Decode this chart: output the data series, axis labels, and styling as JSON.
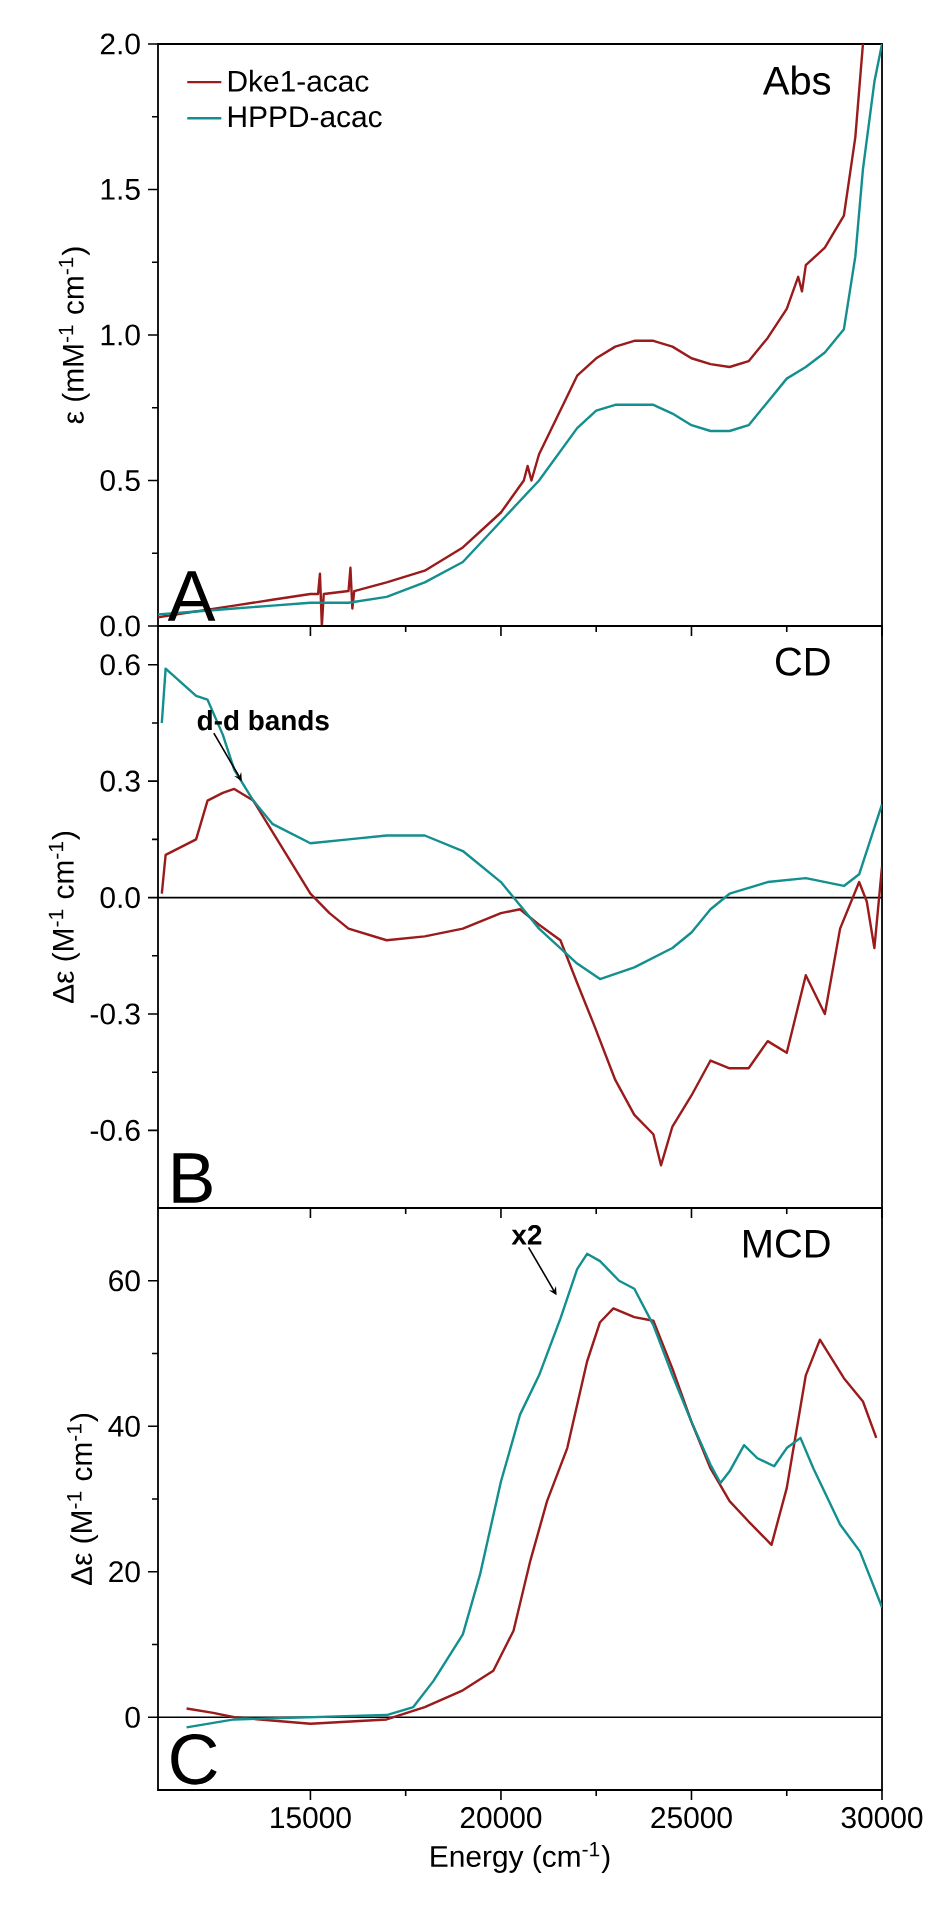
{
  "chart_data": [
    {
      "type": "line",
      "title": "Abs",
      "ylabel": "ε (mM$^{-1}$ cm$^{-1}$)",
      "annotations": [
        "A"
      ],
      "legend": "top left",
      "tick_labels": "y",
      "xlim": [
        11000,
        30000
      ],
      "xticks": [
        15000,
        20000,
        25000,
        30000
      ],
      "ylim": [
        0,
        2
      ],
      "yticks": [
        {
          "value": 0,
          "label": "0.0"
        },
        {
          "value": 0.5,
          "label": "0.5"
        },
        {
          "value": 1,
          "label": "1.0"
        },
        {
          "value": 1.5,
          "label": "1.5"
        },
        {
          "value": 2,
          "label": "2.0"
        }
      ],
      "series": [
        {
          "name": "Dke1-acac",
          "color": "#9a1b1b",
          "x": [
            11000,
            12000,
            13000,
            14000,
            15000,
            15200,
            15250,
            15300,
            15350,
            16000,
            16050,
            16100,
            16150,
            17000,
            18000,
            19000,
            20000,
            20600,
            20700,
            20800,
            21000,
            22000,
            22500,
            23000,
            23500,
            24000,
            24500,
            25000,
            25500,
            26000,
            26500,
            27000,
            27500,
            27800,
            27900,
            28000,
            28500,
            29000,
            29300,
            29500
          ],
          "values": [
            0.03,
            0.05,
            0.07,
            0.09,
            0.11,
            0.11,
            0.18,
            0.0,
            0.11,
            0.12,
            0.2,
            0.06,
            0.12,
            0.15,
            0.19,
            0.27,
            0.39,
            0.5,
            0.55,
            0.5,
            0.59,
            0.86,
            0.92,
            0.96,
            0.98,
            0.98,
            0.96,
            0.92,
            0.9,
            0.89,
            0.91,
            0.99,
            1.09,
            1.2,
            1.15,
            1.24,
            1.3,
            1.41,
            1.68,
            2.0
          ]
        },
        {
          "name": "HPPD-acac",
          "color": "#138f8f",
          "x": [
            11000,
            12000,
            13000,
            14000,
            15000,
            16000,
            17000,
            18000,
            19000,
            20000,
            21000,
            22000,
            22500,
            23000,
            23500,
            24000,
            24500,
            25000,
            25500,
            26000,
            26500,
            27000,
            27500,
            28000,
            28500,
            29000,
            29300,
            29500,
            29800,
            30000
          ],
          "values": [
            0.04,
            0.05,
            0.06,
            0.07,
            0.08,
            0.08,
            0.1,
            0.15,
            0.22,
            0.36,
            0.5,
            0.68,
            0.74,
            0.76,
            0.76,
            0.76,
            0.73,
            0.69,
            0.67,
            0.67,
            0.69,
            0.77,
            0.85,
            0.89,
            0.94,
            1.02,
            1.27,
            1.57,
            1.87,
            2.0
          ]
        }
      ]
    },
    {
      "type": "line",
      "title": "CD",
      "ylabel": "Δε (M$^{-1}$ cm$^{-1}$)",
      "annotations": [
        "B",
        {
          "text": "d-d bands",
          "x": 13200,
          "y": 0.3
        }
      ],
      "tick_labels": "y",
      "xlim": [
        11000,
        30000
      ],
      "xticks": [
        15000,
        20000,
        25000,
        30000
      ],
      "ylim": [
        -0.8,
        0.7
      ],
      "yticks": [
        -0.6,
        -0.3,
        {
          "value": 0,
          "label": "0.0"
        },
        0.3,
        0.6
      ],
      "ref_lines": [
        {
          "axis": "y",
          "value": 0
        }
      ],
      "series": [
        {
          "color": "#9a1b1b",
          "x": [
            11100,
            11200,
            12000,
            12300,
            12700,
            13000,
            13500,
            14000,
            15000,
            15500,
            16000,
            17000,
            18000,
            19000,
            20000,
            20500,
            21000,
            21560,
            22000,
            22450,
            23000,
            23500,
            24000,
            24200,
            24500,
            25000,
            25500,
            26000,
            26500,
            27000,
            27500,
            28000,
            28500,
            28900,
            29400,
            29600,
            29800,
            30000
          ],
          "values": [
            0.01,
            0.11,
            0.15,
            0.25,
            0.27,
            0.28,
            0.25,
            0.17,
            0.01,
            -0.04,
            -0.08,
            -0.11,
            -0.1,
            -0.08,
            -0.04,
            -0.03,
            -0.07,
            -0.11,
            -0.22,
            -0.33,
            -0.47,
            -0.56,
            -0.61,
            -0.69,
            -0.59,
            -0.51,
            -0.42,
            -0.44,
            -0.44,
            -0.37,
            -0.4,
            -0.2,
            -0.3,
            -0.08,
            0.04,
            -0.01,
            -0.13,
            0.08
          ]
        },
        {
          "color": "#138f8f",
          "x": [
            11100,
            11200,
            12000,
            12300,
            12700,
            13000,
            13500,
            14000,
            15000,
            16000,
            17000,
            18000,
            19000,
            20000,
            20500,
            21000,
            22000,
            22600,
            23500,
            24500,
            25000,
            25500,
            26000,
            27000,
            28000,
            29000,
            29400,
            29800,
            30000
          ],
          "values": [
            0.45,
            0.59,
            0.52,
            0.51,
            0.42,
            0.33,
            0.25,
            0.19,
            0.14,
            0.15,
            0.16,
            0.16,
            0.12,
            0.04,
            -0.02,
            -0.08,
            -0.17,
            -0.21,
            -0.18,
            -0.13,
            -0.09,
            -0.03,
            0.01,
            0.04,
            0.05,
            0.03,
            0.06,
            0.18,
            0.24
          ]
        }
      ]
    },
    {
      "type": "line",
      "title": "MCD",
      "xlabel": "Energy (cm$^{-1}$)",
      "ylabel": "Δε (M$^{-1}$ cm$^{-1}$)",
      "annotations": [
        "C",
        {
          "text": "x2",
          "x": 21460,
          "y": 58
        }
      ],
      "xlim": [
        11000,
        30000
      ],
      "xticks": [
        15000,
        20000,
        25000,
        30000
      ],
      "ylim": [
        -10,
        70
      ],
      "yticks": [
        0,
        20,
        40,
        60
      ],
      "ref_lines": [
        {
          "axis": "y",
          "value": 0
        }
      ],
      "series": [
        {
          "color": "#9a1b1b",
          "x": [
            11750,
            12450,
            13000,
            15000,
            17000,
            18000,
            19000,
            19800,
            20330,
            20770,
            21210,
            21740,
            22260,
            22600,
            22950,
            23500,
            24000,
            24500,
            25000,
            25500,
            26000,
            26500,
            27100,
            27500,
            28000,
            28370,
            29000,
            29500,
            29850
          ],
          "values": [
            1.2,
            0.6,
            0,
            -0.9,
            -0.3,
            1.4,
            3.7,
            6.4,
            11.9,
            21.5,
            29.7,
            37,
            48.9,
            54.3,
            56.2,
            55,
            54.5,
            47.9,
            40.6,
            34.2,
            29.7,
            26.9,
            23.7,
            31.5,
            47,
            51.9,
            46.6,
            43.4,
            38.4
          ]
        },
        {
          "color": "#138f8f",
          "x": [
            11750,
            13000,
            15000,
            17000,
            17700,
            18230,
            19000,
            19450,
            20000,
            20500,
            21000,
            21560,
            22000,
            22260,
            22600,
            23100,
            23500,
            24000,
            24500,
            25000,
            25500,
            25760,
            26000,
            26380,
            26730,
            27170,
            27500,
            27860,
            28200,
            28900,
            29420,
            30000
          ],
          "values": [
            -1.4,
            -0.3,
            0,
            0.3,
            1.4,
            5,
            11.4,
            19.6,
            32.4,
            41.6,
            47,
            54.8,
            61.6,
            63.7,
            62.7,
            60,
            58.9,
            53.9,
            47,
            40.6,
            34.7,
            32.2,
            33.8,
            37.4,
            35.6,
            34.5,
            37,
            38.4,
            34.2,
            26.5,
            22.8,
            15.1
          ]
        }
      ]
    }
  ]
}
